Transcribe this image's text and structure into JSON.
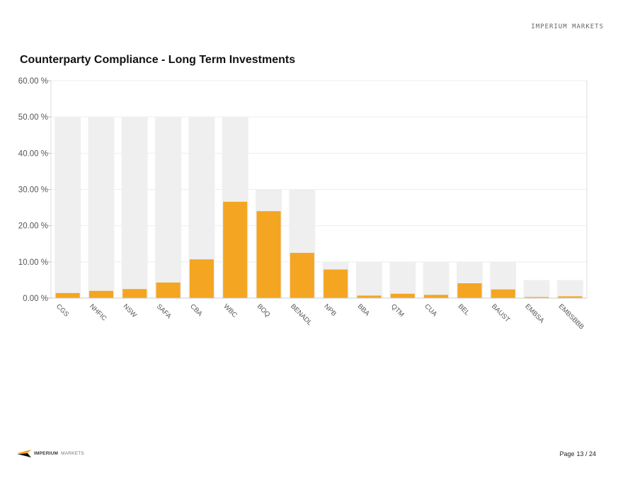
{
  "header": {
    "logo_text": "IMPERIUM MARKETS"
  },
  "colors": {
    "limit": "#efefef",
    "actual": "#f4a522",
    "axis_text": "#555555",
    "grid": "#eeeeee"
  },
  "chart_data": {
    "type": "bar",
    "title": "Counterparty Compliance - Long Term Investments",
    "xlabel": "",
    "ylabel": "",
    "ylim": [
      0,
      60
    ],
    "yticks": [
      "0.00 %",
      "10.00 %",
      "20.00 %",
      "30.00 %",
      "40.00 %",
      "50.00 %",
      "60.00 %"
    ],
    "categories": [
      "CGS",
      "NHFIC",
      "NSW",
      "SAFA",
      "CBA",
      "WBC",
      "BOQ",
      "BENADL",
      "NPB",
      "BBA",
      "QTM",
      "CUA",
      "BEL",
      "BAUST",
      "EMBSA",
      "EMBSBBB"
    ],
    "series": [
      {
        "role": "limit",
        "values": [
          50,
          50,
          50,
          50,
          50,
          50,
          30,
          30,
          10,
          10,
          10,
          10,
          10,
          10,
          5,
          5
        ]
      },
      {
        "role": "actual",
        "values": [
          1.4,
          2.0,
          2.5,
          4.3,
          10.7,
          26.6,
          24.0,
          12.5,
          7.9,
          0.7,
          1.2,
          0.9,
          4.1,
          2.4,
          0.3,
          0.5
        ]
      }
    ],
    "grid": true,
    "legend": "none"
  },
  "footer": {
    "brand_strong": "IMPERIUM",
    "brand_light": "MARKETS",
    "page_label": "Page",
    "page_number": "13 / 24"
  }
}
